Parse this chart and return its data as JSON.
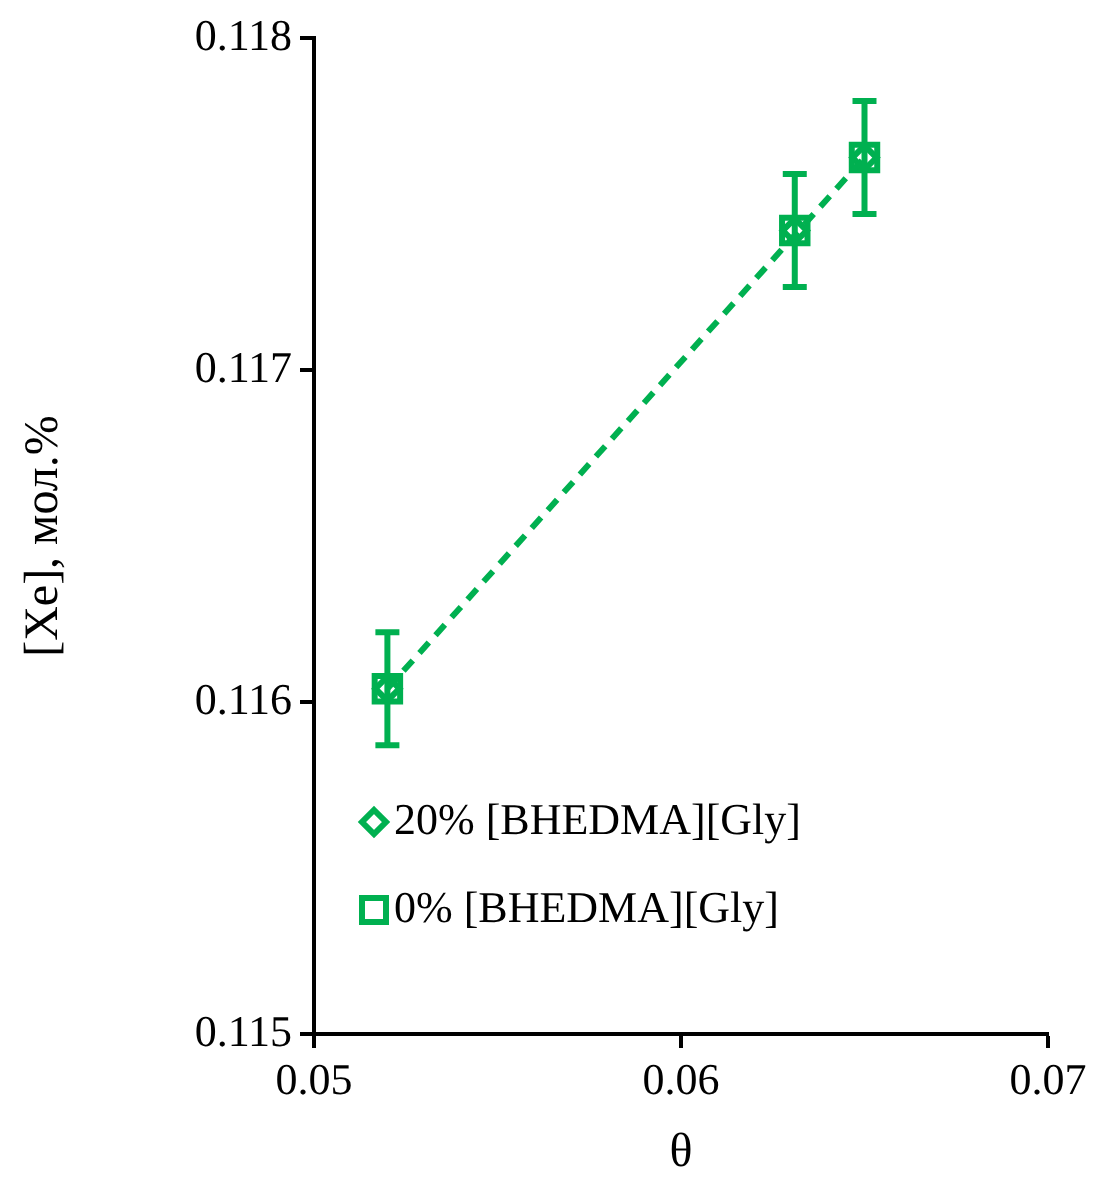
{
  "chart_data": {
    "type": "scatter",
    "xlabel": "θ",
    "ylabel": "[Xe], мол.%",
    "xlim": [
      0.05,
      0.07
    ],
    "xticks": [
      0.05,
      0.06,
      0.07
    ],
    "ylim": [
      0.115,
      0.118
    ],
    "yticks": [
      0.115,
      0.116,
      0.117,
      0.118
    ],
    "grid": false,
    "legend": "bottom left",
    "series": [
      {
        "name": "20% [BHEDMA][Gly]",
        "color": "#00b050",
        "marker": "diamond",
        "x": [
          0.052,
          0.0631,
          0.065
        ],
        "values": [
          0.11604,
          0.11742,
          0.11764
        ]
      },
      {
        "name": "0% [BHEDMA][Gly]",
        "color": "#00b050",
        "marker": "square",
        "x": [
          0.052,
          0.0631,
          0.065
        ],
        "values": [
          0.11604,
          0.11742,
          0.11764
        ],
        "errors": [
          0.00017,
          0.00017,
          0.00017
        ]
      },
      {
        "type": "line",
        "color": "#00b050",
        "marker": "none",
        "line_style": "dashed",
        "x": [
          0.052,
          0.065
        ],
        "values": [
          0.11604,
          0.11764
        ]
      }
    ]
  }
}
